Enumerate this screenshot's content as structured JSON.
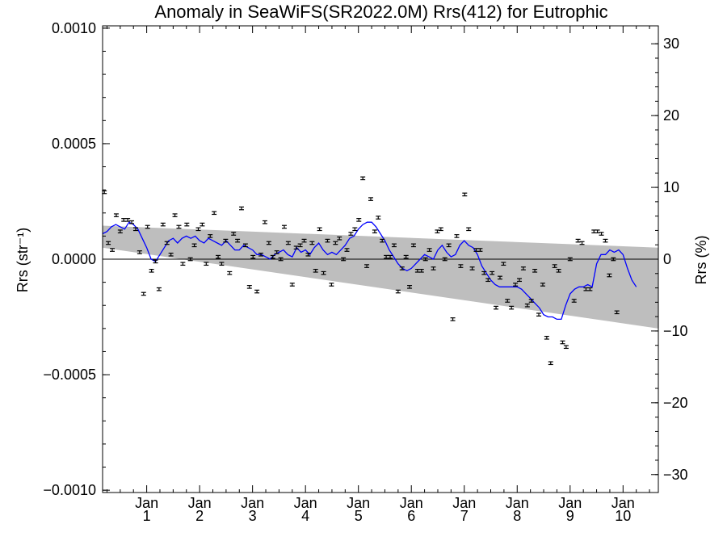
{
  "chart_data": {
    "type": "scatter",
    "title": "Anomaly in SeaWiFS(SR2022.0M) Rrs(412) for Eutrophic",
    "ylabel_left": "Rrs (str⁻¹)",
    "ylabel_right": "Rrs (%)",
    "ylim_left": [
      -0.00101,
      0.00101
    ],
    "ylim_right": [
      -32.5,
      32.5
    ],
    "left_ticks": [
      "0.0010",
      "0.0005",
      "0.0000",
      "−0.0005",
      "−0.0010"
    ],
    "left_tick_values": [
      0.001,
      0.0005,
      0.0,
      -0.0005,
      -0.001
    ],
    "right_ticks": [
      "30",
      "20",
      "10",
      "0",
      "−10",
      "−20",
      "−30"
    ],
    "right_tick_values": [
      30,
      20,
      10,
      0,
      -10,
      -20,
      -30
    ],
    "x_ticks": [
      {
        "month": "Jan",
        "year": "1",
        "x": 12
      },
      {
        "month": "Jan",
        "year": "2",
        "x": 24
      },
      {
        "month": "Jan",
        "year": "3",
        "x": 36
      },
      {
        "month": "Jan",
        "year": "4",
        "x": 48
      },
      {
        "month": "Jan",
        "year": "5",
        "x": 60
      },
      {
        "month": "Jan",
        "year": "6",
        "x": 72
      },
      {
        "month": "Jan",
        "year": "7",
        "x": 84
      },
      {
        "month": "Jan",
        "year": "8",
        "x": 96
      },
      {
        "month": "Jan",
        "year": "9",
        "x": 108
      },
      {
        "month": "Jan",
        "year": "10",
        "x": 120
      }
    ],
    "xlim": [
      2,
      128
    ],
    "band": {
      "upper": [
        [
          2,
          0.000145
        ],
        [
          128,
          5e-05
        ]
      ],
      "lower": [
        [
          2,
          5e-05
        ],
        [
          128,
          -0.0003
        ]
      ],
      "color": "#bebebe"
    },
    "zero_line": 0,
    "points_color": "#000000",
    "line_color": "#0000ff",
    "points": [
      [
        2.4,
        0.00029
      ],
      [
        3.3,
        7e-05
      ],
      [
        4.2,
        4e-05
      ],
      [
        5.1,
        0.00019
      ],
      [
        6.0,
        0.00012
      ],
      [
        6.8,
        0.00017
      ],
      [
        7.7,
        0.00017
      ],
      [
        8.6,
        0.00016
      ],
      [
        9.5,
        0.00013
      ],
      [
        10.4,
        3e-05
      ],
      [
        11.3,
        -0.00015
      ],
      [
        12.2,
        0.00014
      ],
      [
        13.1,
        -5e-05
      ],
      [
        14.0,
        -1e-05
      ],
      [
        14.8,
        -0.00013
      ],
      [
        15.7,
        0.00015
      ],
      [
        16.6,
        7e-05
      ],
      [
        17.5,
        2e-05
      ],
      [
        18.4,
        0.00019
      ],
      [
        19.3,
        0.00014
      ],
      [
        20.2,
        -2e-05
      ],
      [
        21.1,
        0.00015
      ],
      [
        21.9,
        0.0
      ],
      [
        22.8,
        6e-05
      ],
      [
        23.7,
        0.00013
      ],
      [
        24.6,
        0.00015
      ],
      [
        25.5,
        -2e-05
      ],
      [
        26.4,
        0.0001
      ],
      [
        27.3,
        0.0002
      ],
      [
        28.2,
        1e-05
      ],
      [
        29.0,
        -2e-05
      ],
      [
        29.9,
        8e-05
      ],
      [
        30.8,
        -6e-05
      ],
      [
        31.7,
        0.00011
      ],
      [
        32.6,
        8e-05
      ],
      [
        33.5,
        0.00022
      ],
      [
        34.4,
        6e-05
      ],
      [
        35.3,
        -0.00012
      ],
      [
        36.1,
        1e-05
      ],
      [
        37.0,
        -0.00014
      ],
      [
        37.9,
        2e-05
      ],
      [
        38.8,
        0.00016
      ],
      [
        39.7,
        7e-05
      ],
      [
        40.6,
        1e-05
      ],
      [
        41.5,
        3e-05
      ],
      [
        42.4,
        0.0
      ],
      [
        43.2,
        0.00014
      ],
      [
        44.1,
        7e-05
      ],
      [
        45.0,
        -0.00011
      ],
      [
        45.9,
        5e-05
      ],
      [
        46.8,
        6e-05
      ],
      [
        47.7,
        8e-05
      ],
      [
        48.6,
        2e-05
      ],
      [
        49.5,
        7e-05
      ],
      [
        50.3,
        -5e-05
      ],
      [
        51.2,
        0.00013
      ],
      [
        52.1,
        -6e-05
      ],
      [
        53.0,
        8e-05
      ],
      [
        53.9,
        -0.00011
      ],
      [
        54.8,
        7e-05
      ],
      [
        55.7,
        9e-05
      ],
      [
        56.6,
        0.0
      ],
      [
        57.4,
        4e-05
      ],
      [
        58.3,
        0.00011
      ],
      [
        59.2,
        0.00013
      ],
      [
        60.1,
        0.00017
      ],
      [
        61.0,
        0.00035
      ],
      [
        61.9,
        -3e-05
      ],
      [
        62.8,
        0.00026
      ],
      [
        63.7,
        0.00012
      ],
      [
        64.5,
        0.00018
      ],
      [
        65.4,
        8e-05
      ],
      [
        66.3,
        1e-05
      ],
      [
        67.2,
        1e-05
      ],
      [
        68.1,
        6e-05
      ],
      [
        69.0,
        -0.00014
      ],
      [
        69.9,
        -4e-05
      ],
      [
        70.8,
        1e-05
      ],
      [
        71.6,
        -0.00012
      ],
      [
        72.5,
        6e-05
      ],
      [
        73.4,
        -5e-05
      ],
      [
        74.3,
        -5e-05
      ],
      [
        75.2,
        0.0
      ],
      [
        76.1,
        4e-05
      ],
      [
        77.0,
        -4e-05
      ],
      [
        77.9,
        0.00012
      ],
      [
        78.7,
        0.00013
      ],
      [
        79.6,
        0.0
      ],
      [
        80.5,
        6e-05
      ],
      [
        81.4,
        -0.00026
      ],
      [
        82.3,
        0.0001
      ],
      [
        83.2,
        -3e-05
      ],
      [
        84.1,
        0.00028
      ],
      [
        85.0,
        0.00013
      ],
      [
        85.8,
        -4e-05
      ],
      [
        86.7,
        4e-05
      ],
      [
        87.6,
        4e-05
      ],
      [
        88.5,
        -6e-05
      ],
      [
        89.4,
        -9e-05
      ],
      [
        90.3,
        -6e-05
      ],
      [
        91.2,
        -0.00021
      ],
      [
        92.1,
        -8e-05
      ],
      [
        92.9,
        -2e-05
      ],
      [
        93.8,
        -0.00018
      ],
      [
        94.7,
        -0.00021
      ],
      [
        95.6,
        -0.00011
      ],
      [
        96.5,
        -9e-05
      ],
      [
        97.4,
        -4e-05
      ],
      [
        98.3,
        -0.0002
      ],
      [
        99.2,
        -0.00018
      ],
      [
        100.0,
        -5e-05
      ],
      [
        100.9,
        -0.00024
      ],
      [
        101.8,
        -0.00011
      ],
      [
        102.7,
        -0.00034
      ],
      [
        103.6,
        -0.00045
      ],
      [
        104.5,
        -3e-05
      ],
      [
        105.4,
        -5e-05
      ],
      [
        106.3,
        -0.00036
      ],
      [
        107.1,
        -0.00038
      ],
      [
        108.0,
        0.0
      ],
      [
        108.9,
        -0.00018
      ],
      [
        109.8,
        8e-05
      ],
      [
        110.7,
        7e-05
      ],
      [
        111.6,
        -0.00013
      ],
      [
        112.5,
        -0.00013
      ],
      [
        113.4,
        0.00012
      ],
      [
        114.2,
        0.00012
      ],
      [
        115.1,
        0.00011
      ],
      [
        116.0,
        8e-05
      ],
      [
        116.9,
        -7e-05
      ],
      [
        117.8,
        0.0
      ],
      [
        118.6,
        -0.00023
      ]
    ],
    "running_mean": [
      [
        2,
        0.00011
      ],
      [
        3,
        0.00012
      ],
      [
        4,
        0.00014
      ],
      [
        5,
        0.00015
      ],
      [
        6,
        0.00014
      ],
      [
        7,
        0.00013
      ],
      [
        8,
        0.00016
      ],
      [
        9,
        0.00015
      ],
      [
        10,
        0.00013
      ],
      [
        11,
        9e-05
      ],
      [
        12,
        5e-05
      ],
      [
        13,
        0.0
      ],
      [
        14,
        -1e-05
      ],
      [
        15,
        2e-05
      ],
      [
        16,
        5e-05
      ],
      [
        17,
        8e-05
      ],
      [
        18,
        9e-05
      ],
      [
        19,
        7e-05
      ],
      [
        20,
        9e-05
      ],
      [
        21,
        0.0001
      ],
      [
        22,
        9e-05
      ],
      [
        23,
        0.0001
      ],
      [
        24,
        8e-05
      ],
      [
        25,
        7e-05
      ],
      [
        26,
        9e-05
      ],
      [
        27,
        8e-05
      ],
      [
        28,
        7e-05
      ],
      [
        29,
        6e-05
      ],
      [
        30,
        8e-05
      ],
      [
        31,
        6e-05
      ],
      [
        32,
        4e-05
      ],
      [
        33,
        4e-05
      ],
      [
        34,
        6e-05
      ],
      [
        35,
        5e-05
      ],
      [
        36,
        4e-05
      ],
      [
        37,
        2e-05
      ],
      [
        38,
        2e-05
      ],
      [
        39,
        1e-05
      ],
      [
        40,
        0.0
      ],
      [
        41,
        2e-05
      ],
      [
        42,
        3e-05
      ],
      [
        43,
        4e-05
      ],
      [
        44,
        2e-05
      ],
      [
        45,
        1e-05
      ],
      [
        46,
        5e-05
      ],
      [
        47,
        3e-05
      ],
      [
        48,
        4e-05
      ],
      [
        49,
        2e-05
      ],
      [
        50,
        5e-05
      ],
      [
        51,
        7e-05
      ],
      [
        52,
        4e-05
      ],
      [
        53,
        2e-05
      ],
      [
        54,
        3e-05
      ],
      [
        55,
        2e-05
      ],
      [
        56,
        4e-05
      ],
      [
        57,
        6e-05
      ],
      [
        58,
        9e-05
      ],
      [
        59,
        0.0001
      ],
      [
        60,
        0.00013
      ],
      [
        61,
        0.00015
      ],
      [
        62,
        0.00016
      ],
      [
        63,
        0.00016
      ],
      [
        64,
        0.00014
      ],
      [
        65,
        0.00011
      ],
      [
        66,
        8e-05
      ],
      [
        67,
        4e-05
      ],
      [
        68,
        1e-05
      ],
      [
        69,
        -2e-05
      ],
      [
        70,
        -4e-05
      ],
      [
        71,
        -5e-05
      ],
      [
        72,
        -4e-05
      ],
      [
        73,
        -2e-05
      ],
      [
        74,
        0.0
      ],
      [
        75,
        2e-05
      ],
      [
        76,
        1e-05
      ],
      [
        77,
        0.0
      ],
      [
        78,
        4e-05
      ],
      [
        79,
        6e-05
      ],
      [
        80,
        3e-05
      ],
      [
        81,
        1e-05
      ],
      [
        82,
        2e-05
      ],
      [
        83,
        6e-05
      ],
      [
        84,
        8e-05
      ],
      [
        85,
        6e-05
      ],
      [
        86,
        5e-05
      ],
      [
        87,
        2e-05
      ],
      [
        88,
        -3e-05
      ],
      [
        89,
        -6e-05
      ],
      [
        90,
        -9e-05
      ],
      [
        91,
        -0.00011
      ],
      [
        92,
        -0.00012
      ],
      [
        93,
        -0.00012
      ],
      [
        94,
        -0.00012
      ],
      [
        95,
        -0.00012
      ],
      [
        96,
        -0.00012
      ],
      [
        97,
        -0.00013
      ],
      [
        98,
        -0.00015
      ],
      [
        99,
        -0.00017
      ],
      [
        100,
        -0.00019
      ],
      [
        101,
        -0.00021
      ],
      [
        102,
        -0.00024
      ],
      [
        103,
        -0.00025
      ],
      [
        104,
        -0.00025
      ],
      [
        105,
        -0.00026
      ],
      [
        106,
        -0.00026
      ],
      [
        107,
        -0.0002
      ],
      [
        108,
        -0.00015
      ],
      [
        109,
        -0.00013
      ],
      [
        110,
        -0.00012
      ],
      [
        111,
        -0.00012
      ],
      [
        112,
        -0.00011
      ],
      [
        113,
        -0.00012
      ],
      [
        114,
        -2e-05
      ],
      [
        115,
        2e-05
      ],
      [
        116,
        2e-05
      ],
      [
        117,
        4e-05
      ],
      [
        118,
        3e-05
      ],
      [
        119,
        4e-05
      ],
      [
        120,
        2e-05
      ],
      [
        121,
        -4e-05
      ],
      [
        122,
        -9e-05
      ],
      [
        123,
        -0.00012
      ]
    ]
  }
}
